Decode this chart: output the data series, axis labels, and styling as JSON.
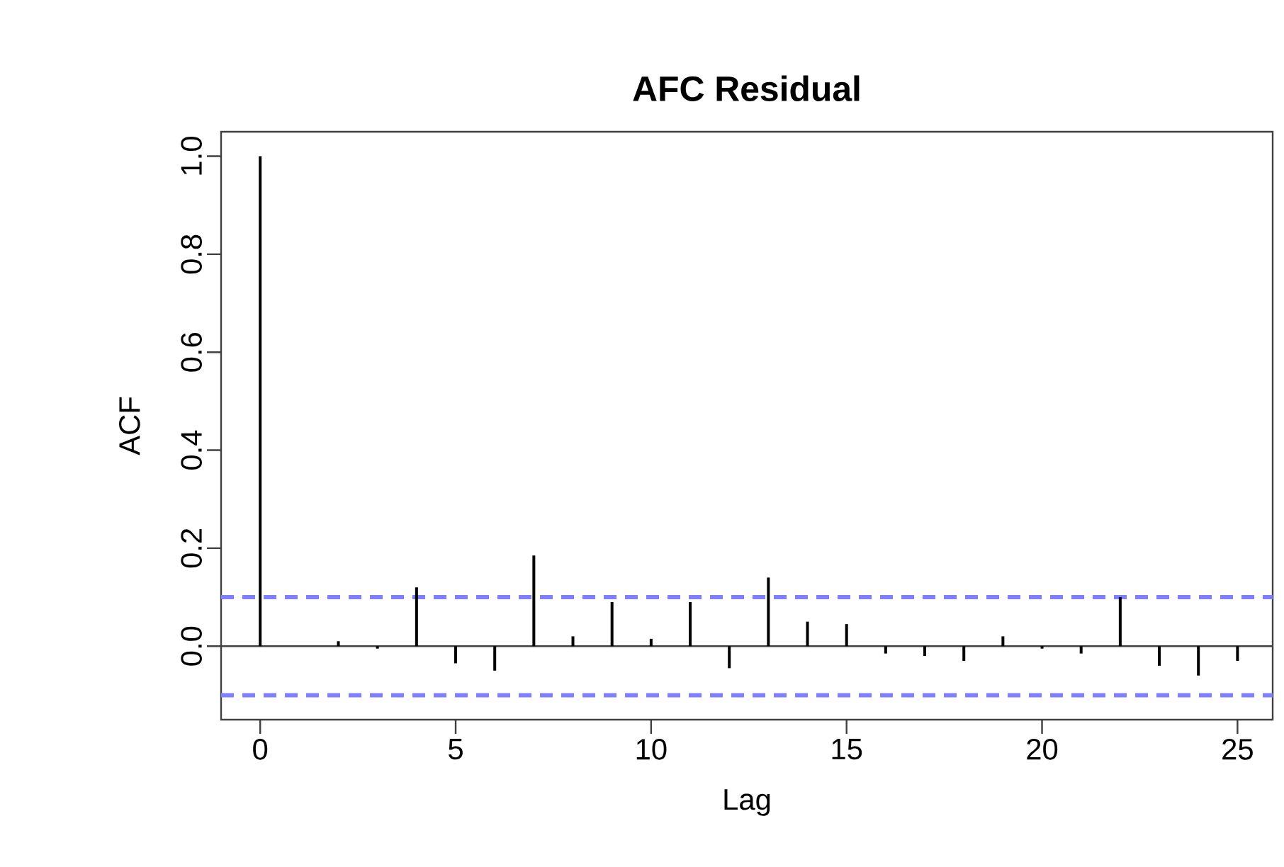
{
  "chart_data": {
    "type": "bar",
    "title": "AFC Residual",
    "xlabel": "Lag",
    "ylabel": "ACF",
    "x": [
      0,
      1,
      2,
      3,
      4,
      5,
      6,
      7,
      8,
      9,
      10,
      11,
      12,
      13,
      14,
      15,
      16,
      17,
      18,
      19,
      20,
      21,
      22,
      23,
      24,
      25
    ],
    "values": [
      1.0,
      0.0,
      0.01,
      -0.005,
      0.12,
      -0.035,
      -0.05,
      0.185,
      0.02,
      0.09,
      0.015,
      0.09,
      -0.045,
      0.14,
      0.05,
      0.045,
      -0.015,
      -0.02,
      -0.03,
      0.02,
      -0.005,
      -0.015,
      0.1,
      -0.04,
      -0.06,
      -0.03
    ],
    "color": "#000000",
    "xlim": [
      -1.0,
      25.9
    ],
    "ylim": [
      -0.15,
      1.05
    ],
    "xticks": [
      0,
      5,
      10,
      15,
      20,
      25
    ],
    "yticks": [
      {
        "value": 0.0,
        "label": "0.0"
      },
      {
        "value": 0.2,
        "label": "0.2"
      },
      {
        "value": 0.4,
        "label": "0.4"
      },
      {
        "value": 0.6,
        "label": "0.6"
      },
      {
        "value": 0.8,
        "label": "0.8"
      },
      {
        "value": 1.0,
        "label": "1.0"
      }
    ],
    "ref_lines": [
      {
        "axis": "y",
        "value": 0,
        "color": "#404040",
        "line_style": "solid"
      },
      {
        "axis": "y",
        "value": 0.1,
        "color": "#8080ff",
        "line_style": "dashed"
      },
      {
        "axis": "y",
        "value": -0.1,
        "color": "#8080ff",
        "line_style": "dashed"
      }
    ],
    "tick_labels": "xy"
  }
}
